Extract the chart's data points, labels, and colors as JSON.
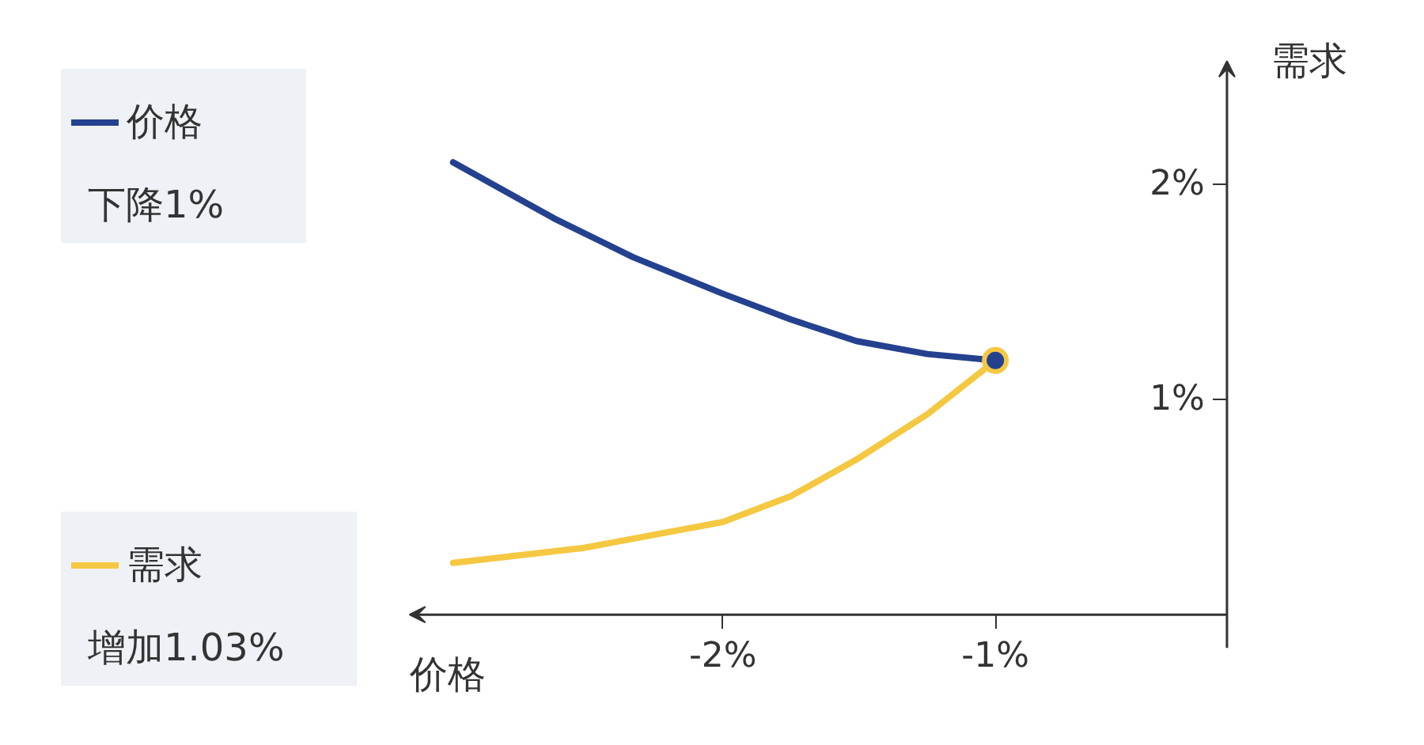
{
  "chart_data": {
    "type": "line",
    "xlabel": "价格",
    "ylabel": "需求",
    "xlim": [
      -3.15,
      -0.15
    ],
    "ylim": [
      0,
      2.57
    ],
    "xticks": [
      {
        "value": -2,
        "label": "-2%"
      },
      {
        "value": -1,
        "label": "-1%"
      }
    ],
    "yticks": [
      {
        "value": 1,
        "label": "1%"
      },
      {
        "value": 2,
        "label": "2%"
      }
    ],
    "series": [
      {
        "name": "价格",
        "color": "#23418f",
        "x": [
          -2.99,
          -2.62,
          -2.33,
          -2.0,
          -1.75,
          -1.51,
          -1.25,
          -1.0
        ],
        "values": [
          2.1,
          1.84,
          1.66,
          1.49,
          1.37,
          1.27,
          1.21,
          1.18
        ]
      },
      {
        "name": "需求",
        "color": "#f5c842",
        "x": [
          -2.99,
          -2.51,
          -2.0,
          -1.75,
          -1.51,
          -1.25,
          -1.0
        ],
        "values": [
          0.24,
          0.31,
          0.43,
          0.55,
          0.72,
          0.93,
          1.18
        ]
      },
      {
        "type": "scatter",
        "color": "#23418f",
        "x": [
          -1.0
        ],
        "values": [
          1.18
        ]
      }
    ],
    "annotations": [
      "下降1%",
      "增加1.03%"
    ],
    "grid": false,
    "legend": "left"
  }
}
